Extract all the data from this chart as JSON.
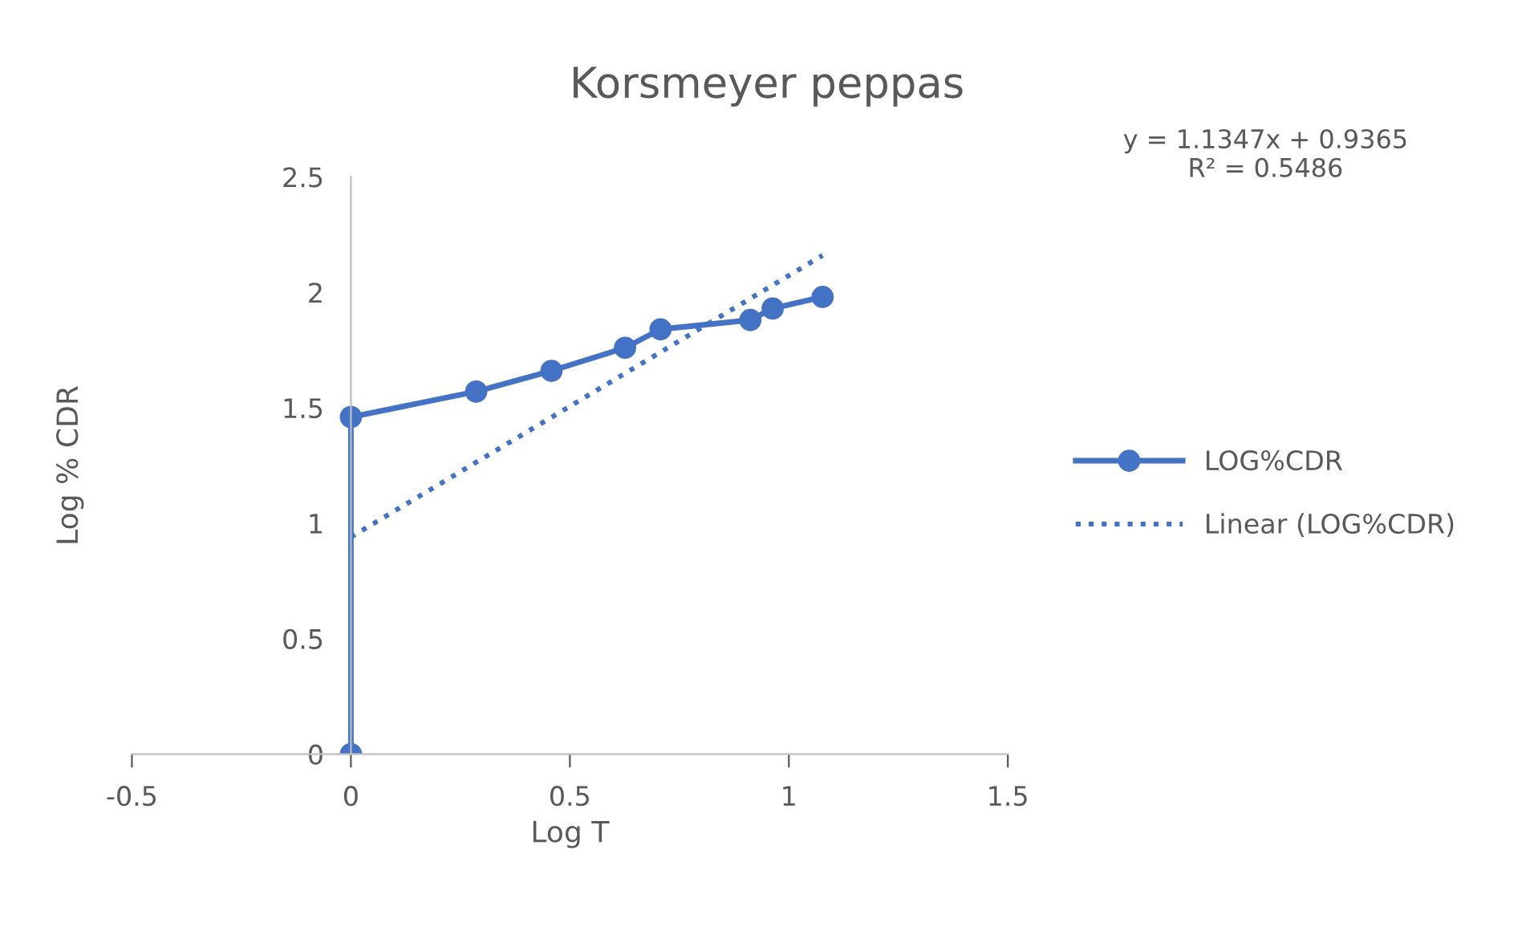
{
  "chart_data": {
    "type": "line",
    "title": "Korsmeyer peppas",
    "xlabel": "Log T",
    "ylabel": "Log % CDR",
    "series": [
      {
        "name": "LOG%CDR",
        "color": "#4472c4",
        "x": [
          0,
          0,
          0.286,
          0.458,
          0.626,
          0.707,
          0.912,
          0.963,
          1.077
        ],
        "values": [
          0,
          1.46,
          1.57,
          1.66,
          1.76,
          1.84,
          1.88,
          1.93,
          1.98
        ],
        "marker": "circle",
        "line_style": "solid"
      },
      {
        "name": "Linear (LOG%CDR)",
        "color": "#4472c4",
        "x": [
          0,
          1.077
        ],
        "values": [
          0.94,
          2.16
        ],
        "marker": "none",
        "line_style": "dotted"
      }
    ],
    "annotations": [
      "y = 1.1347x + 0.9365\nR² = 0.5486"
    ],
    "xlim": [
      -0.5,
      1.5
    ],
    "xticks": [
      -0.5,
      0,
      0.5,
      1,
      1.5
    ],
    "ylim": [
      0,
      2.5
    ],
    "yticks": [
      0,
      0.5,
      1,
      1.5,
      2,
      2.5
    ],
    "grid": false,
    "legend": "right"
  }
}
